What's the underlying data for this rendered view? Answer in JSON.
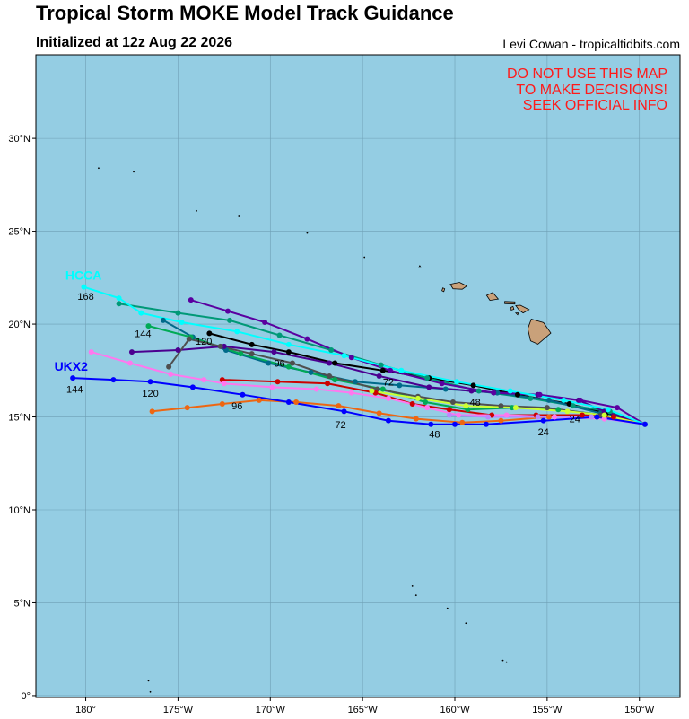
{
  "header": {
    "title": "Tropical Storm MOKE Model Track Guidance",
    "subtitle": "Initialized at 12z Aug 22 2026",
    "credit": "Levi Cowan - tropicaltidbits.com"
  },
  "warning": [
    "DO NOT USE THIS MAP",
    "TO MAKE DECISIONS!",
    "SEEK OFFICIAL INFO"
  ],
  "colors": {
    "ocean": "#94cde3",
    "land": "#c9a17a",
    "grid": "#6f9fb5",
    "warning": "#ff1a1a"
  },
  "axes": {
    "lon_range": [
      -182.7,
      -147.8
    ],
    "lat_range": [
      -0.1,
      34.5
    ],
    "lon_ticks": [
      {
        "lon": -180,
        "label": "180°"
      },
      {
        "lon": -175,
        "label": "175°W"
      },
      {
        "lon": -170,
        "label": "170°W"
      },
      {
        "lon": -165,
        "label": "165°W"
      },
      {
        "lon": -160,
        "label": "160°W"
      },
      {
        "lon": -155,
        "label": "155°W"
      },
      {
        "lon": -150,
        "label": "150°W"
      }
    ],
    "lat_ticks": [
      {
        "lat": 0,
        "label": "0°"
      },
      {
        "lat": 5,
        "label": "5°N"
      },
      {
        "lat": 10,
        "label": "10°N"
      },
      {
        "lat": 15,
        "label": "15°N"
      },
      {
        "lat": 20,
        "label": "20°N"
      },
      {
        "lat": 25,
        "label": "25°N"
      },
      {
        "lat": 30,
        "label": "30°N"
      }
    ]
  },
  "model_labels": [
    {
      "text": "HCCA",
      "color": "#00ffff",
      "lon": -181.1,
      "lat": 22.4
    },
    {
      "text": "UKX2",
      "color": "#0000ff",
      "lon": -181.7,
      "lat": 17.5
    }
  ],
  "hour_labels": [
    {
      "text": "168",
      "lon": -180.0,
      "lat": 21.3
    },
    {
      "text": "144",
      "lon": -176.9,
      "lat": 19.3
    },
    {
      "text": "120",
      "lon": -173.6,
      "lat": 18.9
    },
    {
      "text": "96",
      "lon": -169.5,
      "lat": 17.7
    },
    {
      "text": "72",
      "lon": -163.6,
      "lat": 16.7
    },
    {
      "text": "48",
      "lon": -158.9,
      "lat": 15.6
    },
    {
      "text": "24",
      "lon": -153.5,
      "lat": 14.7
    },
    {
      "text": "144",
      "lon": -180.6,
      "lat": 16.3
    },
    {
      "text": "120",
      "lon": -176.5,
      "lat": 16.1
    },
    {
      "text": "96",
      "lon": -171.8,
      "lat": 15.4
    },
    {
      "text": "72",
      "lon": -166.2,
      "lat": 14.4
    },
    {
      "text": "48",
      "lon": -161.1,
      "lat": 13.9
    },
    {
      "text": "24",
      "lon": -155.2,
      "lat": 14.0
    }
  ],
  "chart_data": {
    "type": "line",
    "series": [
      {
        "name": "HCCA",
        "color": "#00ffff",
        "points": [
          [
            -149.7,
            14.6
          ],
          [
            -151.7,
            15.4
          ],
          [
            -154.1,
            15.9
          ],
          [
            -157.0,
            16.4
          ],
          [
            -159.9,
            16.9
          ],
          [
            -162.9,
            17.5
          ],
          [
            -166.0,
            18.3
          ],
          [
            -169.0,
            18.9
          ],
          [
            -171.8,
            19.6
          ],
          [
            -174.8,
            20.1
          ],
          [
            -177.0,
            20.6
          ],
          [
            -178.2,
            21.4
          ],
          [
            -180.1,
            22.0
          ]
        ]
      },
      {
        "name": "UKX2",
        "color": "#0000ff",
        "points": [
          [
            -149.7,
            14.6
          ],
          [
            -152.3,
            15.0
          ],
          [
            -155.2,
            14.8
          ],
          [
            -158.3,
            14.6
          ],
          [
            -160.0,
            14.6
          ],
          [
            -161.3,
            14.6
          ],
          [
            -163.6,
            14.8
          ],
          [
            -166.0,
            15.3
          ],
          [
            -169.0,
            15.8
          ],
          [
            -171.5,
            16.2
          ],
          [
            -174.2,
            16.6
          ],
          [
            -176.5,
            16.9
          ],
          [
            -178.5,
            17.0
          ],
          [
            -180.7,
            17.1
          ]
        ]
      },
      {
        "color": "#000000",
        "points": [
          [
            -149.7,
            14.6
          ],
          [
            -151.8,
            15.2
          ],
          [
            -153.8,
            15.7
          ],
          [
            -156.6,
            16.2
          ],
          [
            -159.0,
            16.7
          ],
          [
            -161.4,
            17.1
          ],
          [
            -163.9,
            17.5
          ],
          [
            -166.5,
            17.9
          ],
          [
            -169.0,
            18.5
          ],
          [
            -171.0,
            18.9
          ],
          [
            -173.3,
            19.5
          ]
        ]
      },
      {
        "color": "#009977",
        "points": [
          [
            -149.7,
            14.6
          ],
          [
            -151.6,
            15.3
          ],
          [
            -153.6,
            15.6
          ],
          [
            -155.9,
            16.0
          ],
          [
            -158.7,
            16.4
          ],
          [
            -161.5,
            17.1
          ],
          [
            -164.0,
            17.8
          ],
          [
            -166.7,
            18.6
          ],
          [
            -169.5,
            19.4
          ],
          [
            -172.2,
            20.2
          ],
          [
            -175.0,
            20.6
          ],
          [
            -178.2,
            21.1
          ]
        ]
      },
      {
        "color": "#006a8a",
        "points": [
          [
            -149.7,
            14.6
          ],
          [
            -152.1,
            15.2
          ],
          [
            -154.9,
            15.9
          ],
          [
            -157.7,
            16.3
          ],
          [
            -160.5,
            16.5
          ],
          [
            -163.0,
            16.7
          ],
          [
            -165.4,
            16.9
          ],
          [
            -167.8,
            17.4
          ],
          [
            -170.1,
            17.9
          ],
          [
            -172.4,
            18.6
          ],
          [
            -174.2,
            19.3
          ],
          [
            -175.8,
            20.2
          ]
        ]
      },
      {
        "color": "#00aa55",
        "points": [
          [
            -149.7,
            14.6
          ],
          [
            -151.9,
            15.1
          ],
          [
            -154.4,
            15.4
          ],
          [
            -156.9,
            15.5
          ],
          [
            -159.3,
            15.4
          ],
          [
            -161.6,
            15.8
          ],
          [
            -163.9,
            16.5
          ],
          [
            -166.5,
            17.0
          ],
          [
            -169.0,
            17.7
          ],
          [
            -171.6,
            18.4
          ],
          [
            -174.3,
            19.3
          ],
          [
            -176.6,
            19.9
          ]
        ]
      },
      {
        "color": "#4b0090",
        "points": [
          [
            -149.7,
            14.6
          ],
          [
            -151.9,
            15.3
          ],
          [
            -153.3,
            15.9
          ],
          [
            -155.5,
            16.2
          ],
          [
            -159.1,
            16.4
          ],
          [
            -161.4,
            16.6
          ],
          [
            -164.1,
            17.2
          ],
          [
            -166.8,
            17.9
          ],
          [
            -169.8,
            18.5
          ],
          [
            -172.5,
            18.8
          ],
          [
            -175.0,
            18.6
          ],
          [
            -177.5,
            18.5
          ]
        ]
      },
      {
        "color": "#4f4f4f",
        "points": [
          [
            -149.7,
            14.6
          ],
          [
            -152.1,
            15.1
          ],
          [
            -155.0,
            15.5
          ],
          [
            -157.5,
            15.6
          ],
          [
            -160.1,
            15.8
          ],
          [
            -162.0,
            16.1
          ],
          [
            -164.2,
            16.5
          ],
          [
            -166.8,
            17.2
          ],
          [
            -168.8,
            17.9
          ],
          [
            -171.0,
            18.4
          ],
          [
            -172.7,
            18.8
          ],
          [
            -174.4,
            19.2
          ],
          [
            -175.5,
            17.7
          ]
        ]
      },
      {
        "color": "#5a00a0",
        "points": [
          [
            -149.7,
            14.6
          ],
          [
            -151.2,
            15.5
          ],
          [
            -153.2,
            15.9
          ],
          [
            -155.4,
            16.2
          ],
          [
            -157.9,
            16.3
          ],
          [
            -160.7,
            16.8
          ],
          [
            -163.5,
            17.5
          ],
          [
            -165.6,
            18.2
          ],
          [
            -168.0,
            19.2
          ],
          [
            -170.3,
            20.1
          ],
          [
            -172.3,
            20.7
          ],
          [
            -174.3,
            21.3
          ]
        ]
      },
      {
        "color": "#cc0000",
        "points": [
          [
            -149.7,
            14.6
          ],
          [
            -151.4,
            15.0
          ],
          [
            -153.1,
            15.1
          ],
          [
            -155.6,
            15.1
          ],
          [
            -158.0,
            15.1
          ],
          [
            -160.3,
            15.4
          ],
          [
            -162.3,
            15.7
          ],
          [
            -164.3,
            16.3
          ],
          [
            -166.9,
            16.8
          ],
          [
            -169.6,
            16.9
          ],
          [
            -172.6,
            17.0
          ]
        ]
      },
      {
        "color": "#ff77ee",
        "points": [
          [
            -149.7,
            14.6
          ],
          [
            -151.9,
            14.9
          ],
          [
            -154.6,
            15.0
          ],
          [
            -157.2,
            15.1
          ],
          [
            -159.8,
            15.1
          ],
          [
            -161.5,
            15.5
          ],
          [
            -163.6,
            16.0
          ],
          [
            -165.6,
            16.3
          ],
          [
            -167.5,
            16.5
          ],
          [
            -169.9,
            16.6
          ],
          [
            -172.5,
            16.8
          ],
          [
            -173.6,
            17.0
          ],
          [
            -175.4,
            17.3
          ],
          [
            -177.6,
            17.9
          ],
          [
            -179.7,
            18.5
          ]
        ]
      },
      {
        "color": "#ee6611",
        "points": [
          [
            -149.7,
            14.6
          ],
          [
            -152.3,
            15.0
          ],
          [
            -154.9,
            15.0
          ],
          [
            -157.5,
            14.8
          ],
          [
            -159.6,
            14.7
          ],
          [
            -162.1,
            14.9
          ],
          [
            -164.1,
            15.2
          ],
          [
            -166.3,
            15.6
          ],
          [
            -168.6,
            15.8
          ],
          [
            -170.6,
            15.9
          ],
          [
            -172.6,
            15.7
          ],
          [
            -174.5,
            15.5
          ],
          [
            -176.4,
            15.3
          ]
        ]
      },
      {
        "color": "#ccff33",
        "points": [
          [
            -149.7,
            14.6
          ],
          [
            -151.9,
            15.1
          ],
          [
            -153.9,
            15.3
          ],
          [
            -156.7,
            15.5
          ],
          [
            -159.4,
            15.6
          ],
          [
            -162.0,
            16.0
          ],
          [
            -164.5,
            16.4
          ]
        ]
      },
      {
        "color": "#bb88ff",
        "points": [
          [
            -149.7,
            14.6
          ],
          [
            -152.6,
            15.0
          ],
          [
            -155.5,
            15.0
          ],
          [
            -158.2,
            15.0
          ],
          [
            -160.3,
            15.1
          ]
        ]
      }
    ]
  }
}
